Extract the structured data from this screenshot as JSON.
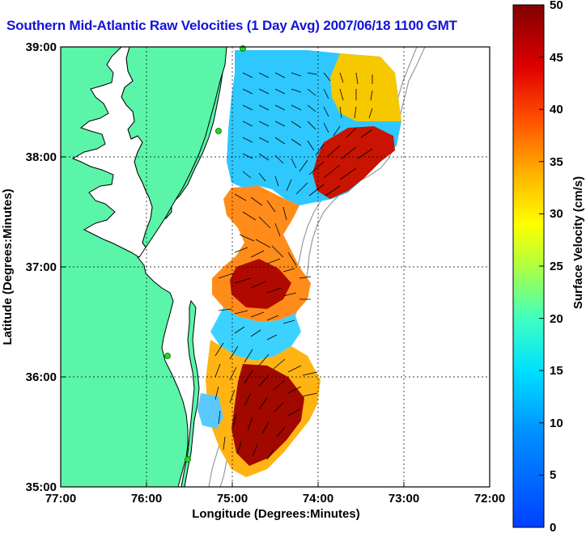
{
  "title": "Southern Mid-Atlantic Raw Velocities (1 Day Avg) 2007/06/18 1100 GMT",
  "axes": {
    "xlabel": "Longitude (Degrees:Minutes)",
    "ylabel": "Latitude (Degrees:Minutes)",
    "xticks": [
      "77:00",
      "76:00",
      "75:00",
      "74:00",
      "73:00",
      "72:00"
    ],
    "yticks": [
      "39:00",
      "38:00",
      "37:00",
      "36:00",
      "35:00"
    ]
  },
  "colorbar": {
    "label": "Surface Velocity (cm/s)",
    "ticks": [
      "50",
      "45",
      "40",
      "35",
      "30",
      "25",
      "20",
      "15",
      "10",
      "5",
      "0"
    ],
    "range": [
      0,
      50
    ],
    "units": "cm/s"
  },
  "colors": {
    "land": "#5af5a8",
    "title": "#1414d8",
    "coast": "#000000",
    "shelf_contour": "#9a9a9a",
    "station_marker": "#22d822"
  },
  "chart_data": {
    "type": "heatmap",
    "xlim": [
      -77,
      -72
    ],
    "ylim": [
      35,
      39
    ],
    "clim": [
      0,
      50
    ],
    "grid": true
  }
}
